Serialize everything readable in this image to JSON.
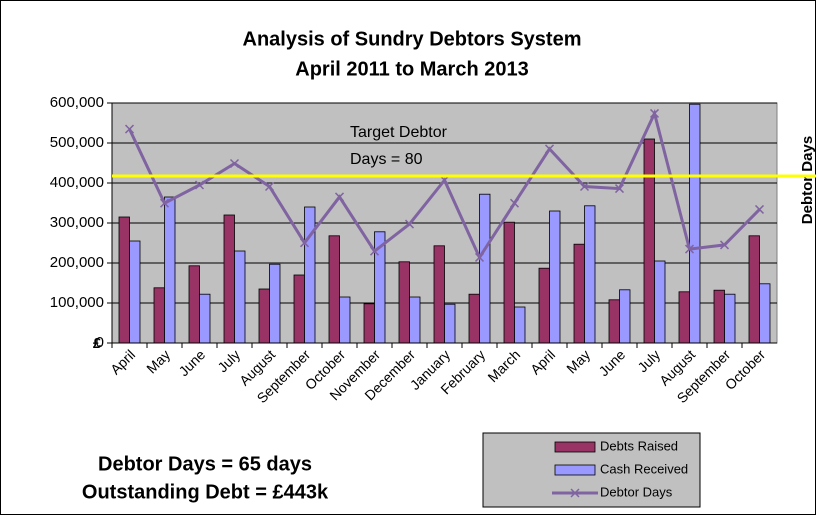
{
  "chart_data": {
    "type": "bar_line",
    "title": [
      "Analysis of Sundry Debtors System",
      "April 2011 to March 2013"
    ],
    "categories": [
      "April",
      "May",
      "June",
      "July",
      "August",
      "September",
      "October",
      "November",
      "December",
      "January",
      "February",
      "March",
      "April",
      "May",
      "June",
      "July",
      "August",
      "September",
      "October"
    ],
    "series": [
      {
        "name": "Debts Raised",
        "color": "#993366",
        "type": "bar",
        "values": [
          315000,
          138000,
          193000,
          320000,
          135000,
          170000,
          268000,
          98000,
          203000,
          243000,
          122000,
          302000,
          187000,
          247000,
          108000,
          510000,
          128000,
          132000,
          268000
        ]
      },
      {
        "name": "Cash Received",
        "color": "#9999ff",
        "type": "bar",
        "values": [
          255000,
          365000,
          122000,
          230000,
          197000,
          340000,
          115000,
          278000,
          115000,
          97000,
          372000,
          90000,
          330000,
          343000,
          133000,
          205000,
          597000,
          122000,
          148000
        ]
      },
      {
        "name": "Debtor Days",
        "color": "#8064a2",
        "type": "line",
        "axis": "y2",
        "values": [
          102.5,
          67,
          75.7,
          86,
          75,
          48,
          70,
          44,
          57,
          78,
          41,
          67,
          93,
          75,
          74,
          110,
          45,
          47,
          64
        ]
      }
    ],
    "ylim": [
      0,
      600000
    ],
    "yticks": [
      0,
      {
        "value": 100000,
        "label": "100,000"
      },
      {
        "value": 200000,
        "label": "200,000"
      },
      {
        "value": 300000,
        "label": "300,000"
      },
      {
        "value": 400000,
        "label": "400,000"
      },
      {
        "value": 500000,
        "label": "500,000"
      },
      {
        "value": 600000,
        "label": "600,000"
      }
    ],
    "y_label": "£",
    "y2lim": [
      0,
      115
    ],
    "y2_label": "Debtor Days",
    "grid": true,
    "target": {
      "value": 80,
      "color": "#ffff00",
      "label": [
        "Target Debtor",
        "Days = 80"
      ]
    },
    "annotations": [
      "Debtor Days = 65 days",
      "Outstanding Debt = £443k"
    ]
  }
}
